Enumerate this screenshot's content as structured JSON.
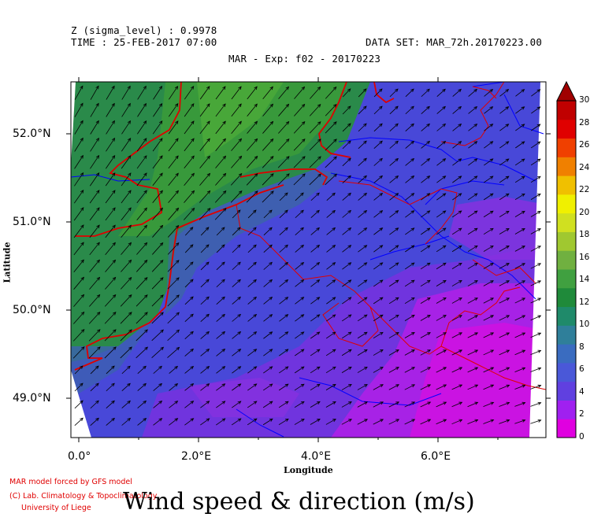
{
  "header": {
    "z_line": "Z (sigma_level) : 0.9978",
    "time_line": "TIME : 25-FEB-2017 07:00",
    "dataset_line": "DATA SET: MAR_72h.20170223.00",
    "experiment_line": "MAR - Exp: f02 - 20170223"
  },
  "axes": {
    "x_label": "Longitude",
    "y_label": "Latitude",
    "x_ticks": [
      "0.0°",
      "2.0°E",
      "4.0°E",
      "6.0°E"
    ],
    "y_ticks": [
      "52.0°N",
      "51.0°N",
      "50.0°N",
      "49.0°N"
    ]
  },
  "colorbar": {
    "labels": [
      "30",
      "28",
      "26",
      "24",
      "22",
      "20",
      "18",
      "16",
      "14",
      "12",
      "10",
      "8",
      "6",
      "4",
      "2",
      "0"
    ],
    "unit": "m/s",
    "colors": [
      "#e000e0",
      "#a020f0",
      "#6040e0",
      "#4a58d8",
      "#3a6cc0",
      "#2f7f9a",
      "#1f8a6a",
      "#1f8a3a",
      "#40a040",
      "#70b040",
      "#a0c830",
      "#d0e020",
      "#f0f000",
      "#f0c000",
      "#f08000",
      "#f04000",
      "#e00000",
      "#c00000"
    ]
  },
  "credits": {
    "line1": "MAR model forced by GFS model",
    "line2": "(C) Lab. Climatology & Topoclimatology",
    "line3": "University of Liege"
  },
  "title": "Wind speed & direction (m/s)",
  "map_style": {
    "border_color": "#e00000",
    "river_color": "#0000ff",
    "arrow_color": "#000000"
  }
}
